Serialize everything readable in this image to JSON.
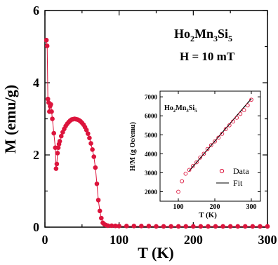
{
  "chart_data": [
    {
      "type": "scatter",
      "title_parts": {
        "base": "Ho",
        "s1": "2",
        "mid": "Mn",
        "s2": "3",
        "mid2": "Si",
        "s3": "5"
      },
      "field_label": "H = 10 mT",
      "xlabel": "T (K)",
      "ylabel": "M (emu/g)",
      "xlim": [
        0,
        300
      ],
      "ylim": [
        0,
        6
      ],
      "xticks": [
        "0",
        "100",
        "200",
        "300"
      ],
      "yticks": [
        "0",
        "2",
        "4",
        "6"
      ],
      "marker_color": "#dc143c",
      "line": true,
      "series": [
        {
          "x": [
            2,
            3,
            4,
            5,
            6,
            7,
            8,
            9,
            10,
            12,
            14,
            15,
            16,
            17,
            18,
            19,
            20,
            22,
            24,
            26,
            28,
            30,
            32,
            34,
            36,
            38,
            40,
            42,
            44,
            46,
            48,
            50,
            52,
            54,
            56,
            58,
            60,
            62,
            64,
            66,
            68,
            70,
            72,
            74,
            76,
            78,
            80,
            82,
            85,
            90,
            95,
            100,
            110,
            120,
            130,
            140,
            150,
            160,
            170,
            180,
            190,
            200,
            210,
            220,
            230,
            240,
            250,
            260,
            270,
            280,
            290,
            300
          ],
          "y": [
            5.18,
            5.02,
            3.55,
            3.45,
            3.2,
            3.35,
            3.4,
            3.2,
            3.0,
            2.6,
            2.2,
            1.62,
            1.75,
            2.05,
            2.2,
            2.3,
            2.38,
            2.52,
            2.63,
            2.72,
            2.8,
            2.86,
            2.91,
            2.95,
            2.98,
            2.99,
            3.0,
            2.99,
            2.98,
            2.96,
            2.93,
            2.89,
            2.84,
            2.77,
            2.69,
            2.59,
            2.47,
            2.32,
            2.15,
            1.95,
            1.65,
            1.2,
            0.75,
            0.45,
            0.25,
            0.12,
            0.08,
            0.06,
            0.04,
            0.04,
            0.035,
            0.03,
            0.03,
            0.03,
            0.03,
            0.03,
            0.02,
            0.02,
            0.02,
            0.02,
            0.02,
            0.02,
            0.02,
            0.02,
            0.02,
            0.02,
            0.02,
            0.02,
            0.02,
            0.02,
            0.02,
            0.02
          ]
        }
      ]
    },
    {
      "type": "scatter",
      "title_parts": {
        "base": "Ho",
        "s1": "2",
        "mid": "Mn",
        "s2": "3",
        "mid2": "Si",
        "s3": "5"
      },
      "xlabel": "T (K)",
      "ylabel": "H/M (g Oe/emu)",
      "xlim": [
        50,
        325
      ],
      "ylim": [
        1500,
        7300
      ],
      "xticks": [
        "100",
        "200",
        "300"
      ],
      "xtick_values": [
        100,
        200,
        300
      ],
      "yticks": [
        "2000",
        "3000",
        "4000",
        "5000",
        "6000",
        "7000"
      ],
      "ytick_values": [
        2000,
        3000,
        4000,
        5000,
        6000,
        7000
      ],
      "legend_data_label": "Data",
      "legend_fit_label": "Fit",
      "data_color": "#dc143c",
      "series": [
        {
          "name": "Data",
          "x": [
            100,
            110,
            120,
            130,
            140,
            150,
            160,
            170,
            180,
            190,
            200,
            210,
            220,
            230,
            240,
            250,
            260,
            270,
            280,
            290,
            300
          ],
          "y": [
            2000,
            2550,
            2950,
            3150,
            3350,
            3550,
            3800,
            4000,
            4250,
            4450,
            4650,
            4850,
            5050,
            5300,
            5500,
            5700,
            5900,
            6100,
            6300,
            6550,
            6850
          ]
        },
        {
          "name": "Fit",
          "x": [
            130,
            300
          ],
          "y": [
            3100,
            6900
          ]
        }
      ]
    }
  ]
}
